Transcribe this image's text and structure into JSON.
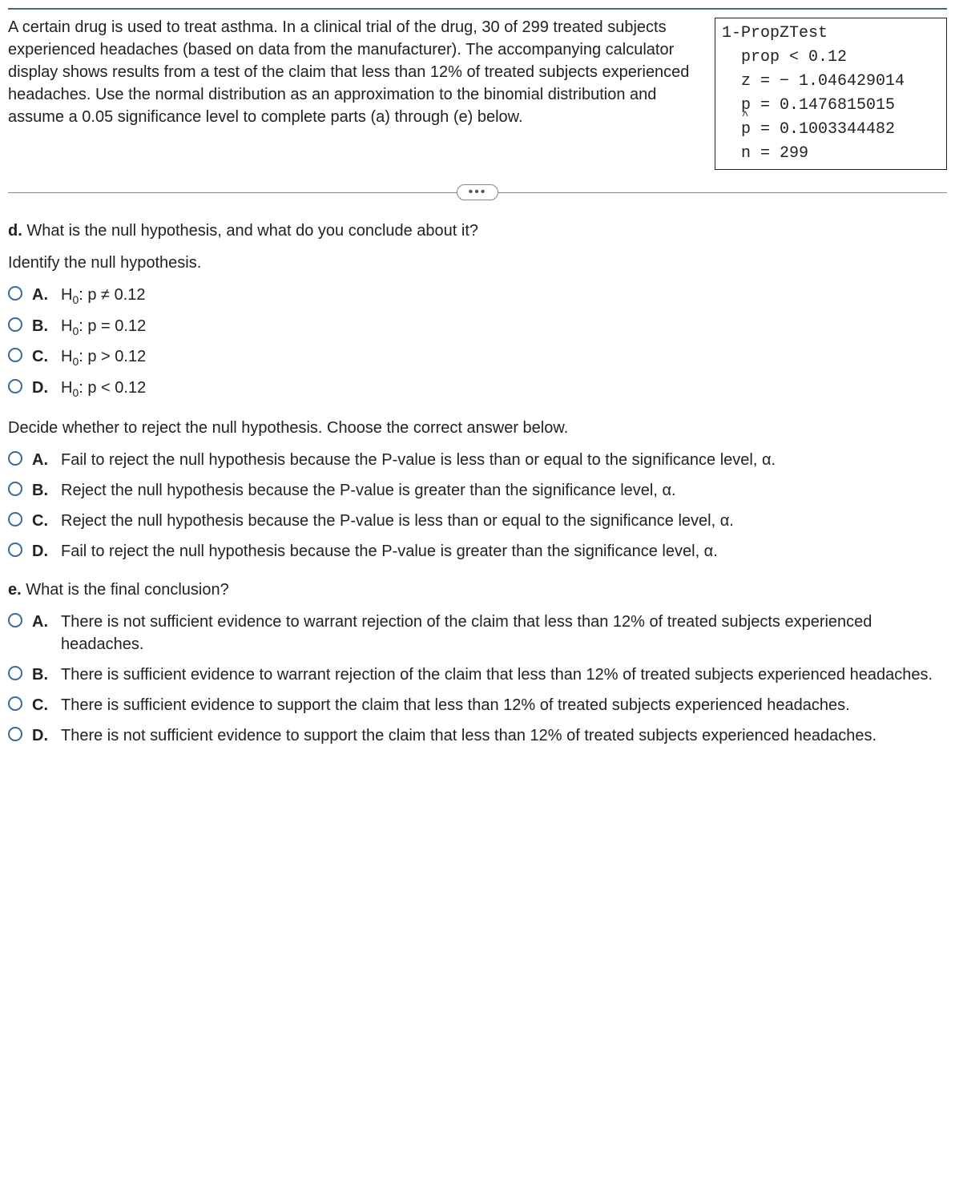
{
  "problem_text": "A certain drug is used to treat asthma. In a clinical trial of the drug, 30 of 299 treated subjects experienced headaches (based on data from the manufacturer). The accompanying calculator display shows results from a test of the claim that less than 12% of treated subjects experienced headaches. Use the normal distribution as an approximation to the binomial distribution and assume a 0.05 significance level to complete parts (a) through (e) below.",
  "calc": {
    "title": "1-PropZTest",
    "prop": "prop < 0.12",
    "z": "z = − 1.046429014",
    "p": "p = 0.1476815015",
    "phat": " = 0.1003344482",
    "n": "n = 299"
  },
  "part_d_label": "d.",
  "part_d_text": "What is the null hypothesis, and what do you conclude about it?",
  "identify_text": "Identify the null hypothesis.",
  "h0_opts": {
    "a_letter": "A.",
    "a_text": "H",
    "a_rest": ": p ≠ 0.12",
    "b_letter": "B.",
    "b_text": "H",
    "b_rest": ": p = 0.12",
    "c_letter": "C.",
    "c_text": "H",
    "c_rest": ": p > 0.12",
    "d_letter": "D.",
    "d_text": "H",
    "d_rest": ": p < 0.12"
  },
  "decide_text": "Decide whether to reject the null hypothesis. Choose the correct answer below.",
  "decide_opts": {
    "a_letter": "A.",
    "a_text": "Fail to reject the null hypothesis because the P-value is less than or equal to the significance level, α.",
    "b_letter": "B.",
    "b_text": "Reject the null hypothesis because the P-value is greater than the significance level, α.",
    "c_letter": "C.",
    "c_text": "Reject the null hypothesis because the P-value is less than or equal to the significance level, α.",
    "d_letter": "D.",
    "d_text": "Fail to reject the null hypothesis because the P-value is greater than the significance level, α."
  },
  "part_e_label": "e.",
  "part_e_text": "What is the final conclusion?",
  "conclusion_opts": {
    "a_letter": "A.",
    "a_text": "There is not sufficient evidence to warrant rejection of the claim that less than 12% of treated subjects experienced headaches.",
    "b_letter": "B.",
    "b_text": "There is sufficient evidence to warrant rejection of the claim that less than 12% of treated subjects experienced headaches.",
    "c_letter": "C.",
    "c_text": "There is sufficient evidence to support the claim that less than 12% of treated subjects experienced headaches.",
    "d_letter": "D.",
    "d_text": "There is not sufficient evidence to support the claim that less than 12% of treated subjects experienced headaches."
  },
  "zero_sub": "0"
}
